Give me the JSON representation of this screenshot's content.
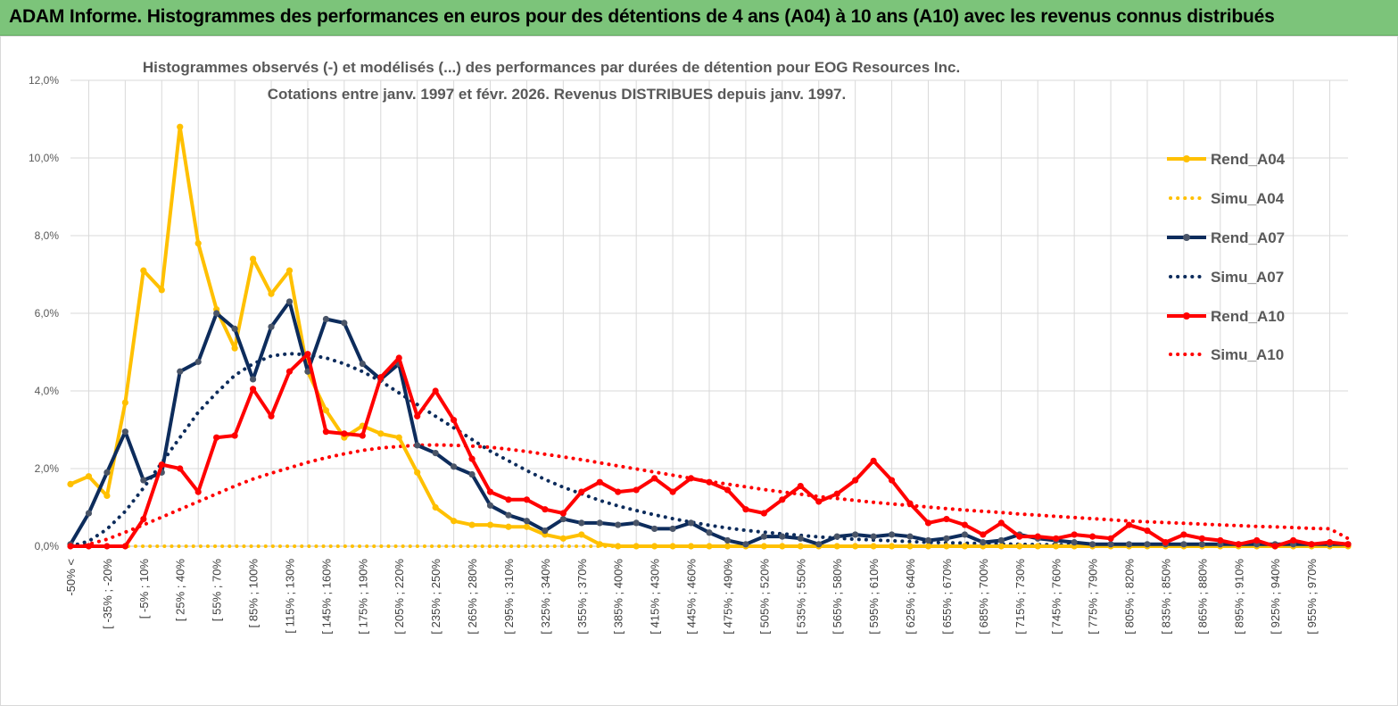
{
  "banner": {
    "title": "ADAM Informe. Histogrammes des performances en euros pour des détentions de 4 ans (A04) à 10 ans (A10) avec les revenus connus distribués"
  },
  "colors": {
    "banner_bg": "#7cc47a",
    "A04": "#ffc000",
    "A07": "#0d2c5c",
    "A10": "#ff0000",
    "grid": "#d9d9d9"
  },
  "chart_data": {
    "type": "line",
    "title_line1": "Histogrammes observés (-) et modélisés (...) des performances par durées de détention pour EOG Resources Inc.",
    "title_line2": "Cotations entre janv. 1997 et févr. 2026. Revenus DISTRIBUES depuis janv. 1997.",
    "xlabel": "",
    "ylabel": "",
    "ylim": [
      0,
      12
    ],
    "yticks": [
      "0,0%",
      "2,0%",
      "4,0%",
      "6,0%",
      "8,0%",
      "10,0%",
      "12,0%"
    ],
    "legend_position": "right",
    "x_labels": [
      "-50% <",
      "[ -35% ; -20%",
      "[ -5% ; 10%",
      "[ 25% ; 40%",
      "[ 55% ; 70%",
      "[ 85% ; 100%",
      "[ 115% ; 130%",
      "[ 145% ; 160%",
      "[ 175% ; 190%",
      "[ 205% ; 220%",
      "[ 235% ; 250%",
      "[ 265% ; 280%",
      "[ 295% ; 310%",
      "[ 325% ; 340%",
      "[ 355% ; 370%",
      "[ 385% ; 400%",
      "[ 415% ; 430%",
      "[ 445% ; 460%",
      "[ 475% ; 490%",
      "[ 505% ; 520%",
      "[ 535% ; 550%",
      "[ 565% ; 580%",
      "[ 595% ; 610%",
      "[ 625% ; 640%",
      "[ 655% ; 670%",
      "[ 685% ; 700%",
      "[ 715% ; 730%",
      "[ 745% ; 760%",
      "[ 775% ; 790%",
      "[ 805% ; 820%",
      "[ 835% ; 850%",
      "[ 865% ; 880%",
      "[ 895% ; 910%",
      "[ 925% ; 940%",
      "[ 955% ; 970%"
    ],
    "series": [
      {
        "name": "Rend_A04",
        "style": "solid",
        "color": "#ffc000",
        "values": [
          1.6,
          1.8,
          1.3,
          3.7,
          7.1,
          6.6,
          10.8,
          7.8,
          6.1,
          5.1,
          7.4,
          6.5,
          7.1,
          4.5,
          3.5,
          2.8,
          3.1,
          2.9,
          2.8,
          1.9,
          1.0,
          0.65,
          0.55,
          0.55,
          0.5,
          0.5,
          0.3,
          0.2,
          0.3,
          0.05,
          0,
          0,
          0,
          0,
          0,
          0,
          0,
          0,
          0,
          0,
          0,
          0,
          0,
          0,
          0,
          0,
          0,
          0,
          0,
          0,
          0,
          0,
          0,
          0,
          0,
          0,
          0,
          0,
          0,
          0,
          0,
          0,
          0,
          0,
          0,
          0,
          0,
          0,
          0,
          0,
          0
        ]
      },
      {
        "name": "Simu_A04",
        "style": "dotted",
        "color": "#ffc000",
        "values": [
          0,
          0,
          0,
          0,
          0,
          0,
          0,
          0,
          0,
          0,
          0,
          0,
          0,
          0,
          0,
          0,
          0,
          0,
          0,
          0,
          0,
          0,
          0,
          0,
          0,
          0,
          0,
          0,
          0,
          0,
          0,
          0,
          0,
          0,
          0,
          0,
          0,
          0,
          0,
          0,
          0,
          0,
          0,
          0,
          0,
          0,
          0,
          0,
          0,
          0,
          0,
          0,
          0,
          0,
          0,
          0,
          0,
          0,
          0,
          0,
          0,
          0,
          0,
          0,
          0,
          0,
          0,
          0,
          0,
          0,
          0
        ]
      },
      {
        "name": "Rend_A07",
        "style": "solid",
        "color": "#0d2c5c",
        "values": [
          0.05,
          0.85,
          1.9,
          2.95,
          1.7,
          1.9,
          4.5,
          4.75,
          6.0,
          5.6,
          4.3,
          5.65,
          6.3,
          4.5,
          5.85,
          5.75,
          4.7,
          4.3,
          4.7,
          2.6,
          2.4,
          2.05,
          1.85,
          1.05,
          0.8,
          0.65,
          0.4,
          0.7,
          0.6,
          0.6,
          0.55,
          0.6,
          0.45,
          0.45,
          0.6,
          0.35,
          0.15,
          0.05,
          0.25,
          0.25,
          0.2,
          0.05,
          0.25,
          0.3,
          0.25,
          0.3,
          0.25,
          0.15,
          0.2,
          0.3,
          0.1,
          0.15,
          0.3,
          0.2,
          0.15,
          0.1,
          0.05,
          0.05,
          0.05,
          0.05,
          0.05,
          0.05,
          0.05,
          0.05,
          0.05,
          0.05,
          0.05,
          0.05,
          0.05,
          0.05,
          0.05
        ]
      },
      {
        "name": "Simu_A07",
        "style": "dotted",
        "color": "#0d2c5c",
        "values": [
          0,
          0.13,
          0.44,
          0.9,
          1.5,
          2.15,
          2.8,
          3.45,
          3.95,
          4.4,
          4.7,
          4.9,
          4.96,
          4.93,
          4.85,
          4.7,
          4.5,
          4.25,
          3.95,
          3.65,
          3.35,
          3.05,
          2.75,
          2.45,
          2.2,
          1.95,
          1.72,
          1.52,
          1.35,
          1.18,
          1.04,
          0.92,
          0.81,
          0.71,
          0.62,
          0.54,
          0.47,
          0.41,
          0.36,
          0.32,
          0.28,
          0.24,
          0.21,
          0.18,
          0.16,
          0.14,
          0.12,
          0.1,
          0.09,
          0.08,
          0.07,
          0.06,
          0.05,
          0.04,
          0.04,
          0.03,
          0.03,
          0.02,
          0.02,
          0.02,
          0.02,
          0.01,
          0.01,
          0.01,
          0.01,
          0.01,
          0.01,
          0.01,
          0.01,
          0.01,
          0
        ]
      },
      {
        "name": "Rend_A10",
        "style": "solid",
        "color": "#ff0000",
        "values": [
          0,
          0,
          0,
          0,
          0.7,
          2.1,
          2.0,
          1.4,
          2.8,
          2.85,
          4.05,
          3.35,
          4.5,
          4.95,
          2.95,
          2.9,
          2.85,
          4.35,
          4.85,
          3.35,
          4.0,
          3.25,
          2.25,
          1.4,
          1.2,
          1.2,
          0.95,
          0.85,
          1.4,
          1.65,
          1.4,
          1.45,
          1.75,
          1.4,
          1.75,
          1.65,
          1.45,
          0.95,
          0.85,
          1.2,
          1.55,
          1.15,
          1.35,
          1.7,
          2.2,
          1.7,
          1.1,
          0.6,
          0.7,
          0.55,
          0.3,
          0.6,
          0.25,
          0.25,
          0.2,
          0.3,
          0.25,
          0.2,
          0.55,
          0.4,
          0.1,
          0.3,
          0.2,
          0.15,
          0.05,
          0.15,
          0.0,
          0.15,
          0.05,
          0.1,
          0.05
        ]
      },
      {
        "name": "Simu_A10",
        "style": "dotted",
        "color": "#ff0000",
        "values": [
          0,
          0.05,
          0.18,
          0.36,
          0.55,
          0.75,
          0.95,
          1.15,
          1.35,
          1.55,
          1.73,
          1.88,
          2.02,
          2.16,
          2.28,
          2.38,
          2.47,
          2.53,
          2.57,
          2.6,
          2.61,
          2.6,
          2.58,
          2.55,
          2.5,
          2.44,
          2.37,
          2.3,
          2.23,
          2.15,
          2.07,
          1.99,
          1.91,
          1.83,
          1.75,
          1.67,
          1.6,
          1.53,
          1.46,
          1.4,
          1.34,
          1.28,
          1.23,
          1.18,
          1.13,
          1.09,
          1.05,
          1.01,
          0.97,
          0.93,
          0.9,
          0.87,
          0.83,
          0.8,
          0.77,
          0.74,
          0.71,
          0.68,
          0.65,
          0.63,
          0.61,
          0.59,
          0.57,
          0.55,
          0.53,
          0.51,
          0.5,
          0.48,
          0.46,
          0.45,
          0.2
        ]
      }
    ]
  }
}
